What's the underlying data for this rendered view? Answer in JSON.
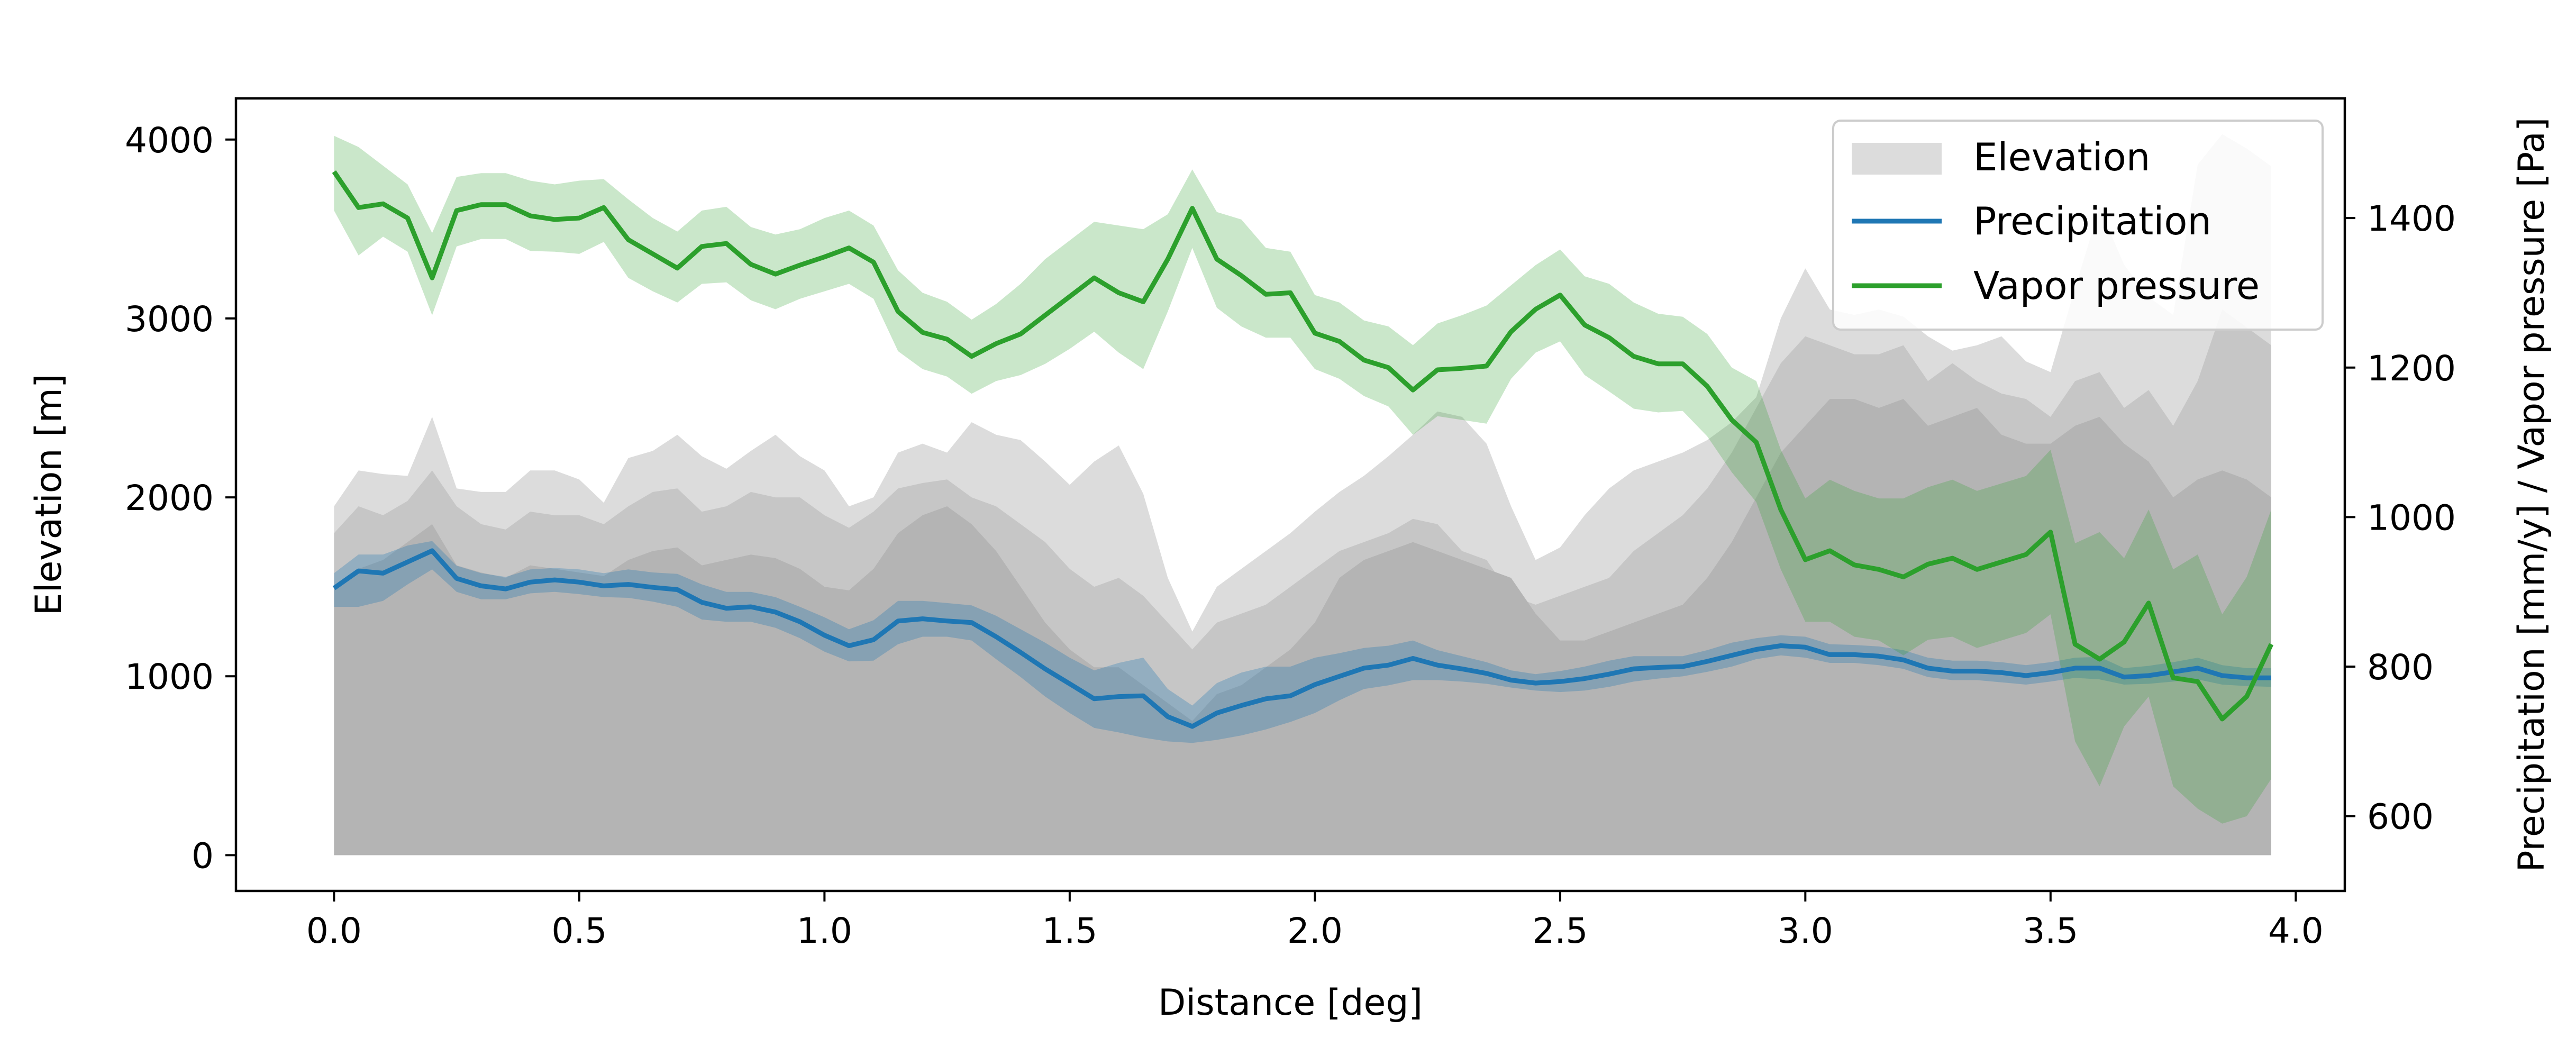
{
  "chart_data": {
    "type": "area",
    "title": "",
    "xlabel": "Distance [deg]",
    "ylabel_left": "Elevation [m]",
    "ylabel_right": "Precipitation [mm/y] / Vapor pressure [Pa]",
    "xlim": [
      -0.2,
      4.1
    ],
    "ylim_left": [
      -200,
      4230
    ],
    "ylim_right": [
      500,
      1560
    ],
    "xticks": [
      0.0,
      0.5,
      1.0,
      1.5,
      2.0,
      2.5,
      3.0,
      3.5,
      4.0
    ],
    "xtick_labels": [
      "0.0",
      "0.5",
      "1.0",
      "1.5",
      "2.0",
      "2.5",
      "3.0",
      "3.5",
      "4.0"
    ],
    "yticks_left": [
      0,
      1000,
      2000,
      3000,
      4000
    ],
    "ytick_labels_left": [
      "0",
      "1000",
      "2000",
      "3000",
      "4000"
    ],
    "yticks_right": [
      600,
      800,
      1000,
      1200,
      1400
    ],
    "ytick_labels_right": [
      "600",
      "800",
      "1000",
      "1200",
      "1400"
    ],
    "grid": false,
    "legend_position": "top-right",
    "colors": {
      "elevation_light": "#dcdcdc",
      "elevation_mid": "#c6c6c6",
      "elevation_dark": "#b4b4b4",
      "precipitation": "#1f77b4",
      "vapor": "#2ca02c"
    },
    "legend": [
      "Elevation",
      "Precipitation",
      "Vapor pressure"
    ],
    "x": [
      0.0,
      0.05,
      0.1,
      0.15,
      0.2,
      0.25,
      0.3,
      0.35,
      0.4,
      0.45,
      0.5,
      0.55,
      0.6,
      0.65,
      0.7,
      0.75,
      0.8,
      0.85,
      0.9,
      0.95,
      1.0,
      1.05,
      1.1,
      1.15,
      1.2,
      1.25,
      1.3,
      1.35,
      1.4,
      1.45,
      1.5,
      1.55,
      1.6,
      1.65,
      1.7,
      1.75,
      1.8,
      1.85,
      1.9,
      1.95,
      2.0,
      2.05,
      2.1,
      2.15,
      2.2,
      2.25,
      2.3,
      2.35,
      2.4,
      2.45,
      2.5,
      2.55,
      2.6,
      2.65,
      2.7,
      2.75,
      2.8,
      2.85,
      2.9,
      2.95,
      3.0,
      3.05,
      3.1,
      3.15,
      3.2,
      3.25,
      3.3,
      3.35,
      3.4,
      3.45,
      3.5,
      3.55,
      3.6,
      3.65,
      3.7,
      3.75,
      3.8,
      3.85,
      3.9,
      3.95
    ],
    "series": [
      {
        "name": "Elevation",
        "band_outer_upper": [
          1950,
          2150,
          2130,
          2120,
          2450,
          2050,
          2030,
          2030,
          2150,
          2150,
          2100,
          1970,
          2220,
          2260,
          2350,
          2230,
          2160,
          2260,
          2350,
          2230,
          2150,
          1950,
          2000,
          2250,
          2300,
          2250,
          2420,
          2350,
          2320,
          2200,
          2070,
          2200,
          2290,
          2020,
          1550,
          1250,
          1500,
          1600,
          1700,
          1800,
          1920,
          2030,
          2120,
          2230,
          2350,
          2480,
          2450,
          2300,
          1950,
          1650,
          1720,
          1900,
          2050,
          2150,
          2200,
          2250,
          2320,
          2420,
          2560,
          3000,
          3280,
          3050,
          3020,
          3050,
          3010,
          2900,
          2820,
          2850,
          2900,
          2760,
          2700,
          3170,
          3620,
          3300,
          3120,
          3020,
          3860,
          4030,
          3950,
          3850
        ],
        "band_inner_upper": [
          1800,
          1950,
          1900,
          1980,
          2150,
          1950,
          1850,
          1820,
          1920,
          1900,
          1900,
          1850,
          1950,
          2030,
          2050,
          1920,
          1950,
          2030,
          2000,
          2000,
          1900,
          1830,
          1920,
          2050,
          2080,
          2100,
          2000,
          1950,
          1850,
          1750,
          1600,
          1500,
          1550,
          1450,
          1300,
          1150,
          1300,
          1350,
          1400,
          1500,
          1600,
          1700,
          1750,
          1800,
          1880,
          1850,
          1700,
          1650,
          1450,
          1400,
          1450,
          1500,
          1550,
          1700,
          1800,
          1900,
          2050,
          2250,
          2500,
          2750,
          2900,
          2850,
          2800,
          2800,
          2850,
          2650,
          2750,
          2650,
          2580,
          2550,
          2450,
          2650,
          2700,
          2500,
          2600,
          2400,
          2650,
          3050,
          2950,
          2850
        ],
        "band_dark_upper": [
          1500,
          1600,
          1650,
          1750,
          1850,
          1620,
          1580,
          1550,
          1620,
          1600,
          1580,
          1560,
          1650,
          1700,
          1720,
          1620,
          1650,
          1680,
          1660,
          1600,
          1500,
          1480,
          1600,
          1800,
          1900,
          1950,
          1850,
          1700,
          1500,
          1300,
          1150,
          1050,
          1050,
          950,
          850,
          750,
          900,
          950,
          1050,
          1150,
          1300,
          1550,
          1650,
          1700,
          1750,
          1700,
          1650,
          1600,
          1550,
          1350,
          1200,
          1200,
          1250,
          1300,
          1350,
          1400,
          1550,
          1750,
          2000,
          2250,
          2400,
          2550,
          2550,
          2500,
          2550,
          2400,
          2450,
          2500,
          2350,
          2300,
          2300,
          2400,
          2450,
          2300,
          2200,
          2000,
          2100,
          2150,
          2100,
          2000
        ]
      },
      {
        "name": "Precipitation",
        "values": [
          905,
          928,
          925,
          940,
          955,
          918,
          908,
          904,
          913,
          916,
          913,
          908,
          910,
          906,
          903,
          886,
          878,
          880,
          873,
          860,
          842,
          828,
          836,
          861,
          864,
          861,
          859,
          840,
          819,
          797,
          777,
          757,
          760,
          761,
          733,
          720,
          738,
          748,
          757,
          761,
          776,
          787,
          798,
          802,
          811,
          802,
          797,
          791,
          782,
          778,
          780,
          784,
          790,
          797,
          799,
          800,
          807,
          815,
          823,
          828,
          826,
          816,
          816,
          814,
          809,
          798,
          794,
          794,
          792,
          788,
          792,
          798,
          798,
          786,
          788,
          793,
          798,
          788,
          785,
          785
        ],
        "band_low": [
          880,
          880,
          888,
          910,
          930,
          900,
          890,
          890,
          898,
          900,
          897,
          893,
          892,
          887,
          880,
          863,
          860,
          860,
          852,
          838,
          820,
          807,
          808,
          830,
          840,
          840,
          835,
          810,
          786,
          760,
          738,
          718,
          712,
          705,
          700,
          698,
          702,
          708,
          716,
          726,
          738,
          755,
          770,
          775,
          782,
          782,
          780,
          777,
          772,
          768,
          766,
          768,
          773,
          780,
          784,
          787,
          793,
          800,
          810,
          815,
          812,
          805,
          805,
          802,
          797,
          786,
          782,
          782,
          779,
          776,
          780,
          785,
          783,
          776,
          777,
          780,
          783,
          776,
          774,
          773
        ],
        "band_high": [
          925,
          950,
          950,
          962,
          968,
          935,
          925,
          920,
          930,
          932,
          930,
          925,
          930,
          926,
          924,
          910,
          900,
          900,
          893,
          880,
          866,
          850,
          862,
          888,
          888,
          885,
          882,
          868,
          850,
          832,
          812,
          795,
          805,
          812,
          770,
          748,
          778,
          792,
          800,
          800,
          812,
          818,
          825,
          828,
          835,
          822,
          814,
          806,
          795,
          790,
          794,
          800,
          808,
          814,
          814,
          814,
          822,
          832,
          838,
          842,
          840,
          830,
          829,
          827,
          822,
          812,
          808,
          808,
          806,
          802,
          806,
          812,
          813,
          798,
          801,
          806,
          812,
          802,
          798,
          798
        ]
      },
      {
        "name": "Vapor pressure",
        "values": [
          1462,
          1414,
          1419,
          1400,
          1320,
          1410,
          1418,
          1418,
          1403,
          1398,
          1400,
          1414,
          1371,
          1352,
          1333,
          1362,
          1366,
          1338,
          1325,
          1337,
          1348,
          1360,
          1341,
          1275,
          1247,
          1238,
          1215,
          1232,
          1245,
          1270,
          1295,
          1320,
          1300,
          1288,
          1345,
          1413,
          1345,
          1323,
          1298,
          1300,
          1246,
          1235,
          1210,
          1200,
          1170,
          1197,
          1199,
          1202,
          1248,
          1278,
          1297,
          1257,
          1240,
          1215,
          1205,
          1205,
          1175,
          1130,
          1100,
          1010,
          943,
          955,
          936,
          930,
          920,
          937,
          945,
          930,
          940,
          950,
          980,
          830,
          810,
          833,
          885,
          785,
          780,
          730,
          760,
          830
        ],
        "band_low": [
          1410,
          1350,
          1375,
          1355,
          1270,
          1362,
          1372,
          1372,
          1356,
          1355,
          1352,
          1368,
          1320,
          1302,
          1287,
          1312,
          1314,
          1290,
          1278,
          1292,
          1302,
          1312,
          1292,
          1222,
          1198,
          1188,
          1165,
          1182,
          1190,
          1205,
          1225,
          1248,
          1220,
          1198,
          1275,
          1360,
          1280,
          1255,
          1240,
          1240,
          1198,
          1185,
          1162,
          1148,
          1110,
          1135,
          1130,
          1125,
          1185,
          1220,
          1235,
          1190,
          1168,
          1145,
          1140,
          1142,
          1108,
          1060,
          1020,
          930,
          860,
          860,
          840,
          835,
          815,
          836,
          840,
          825,
          835,
          845,
          870,
          700,
          640,
          720,
          760,
          640,
          610,
          590,
          600,
          650
        ],
        "band_high": [
          1510,
          1495,
          1470,
          1445,
          1380,
          1455,
          1460,
          1460,
          1450,
          1445,
          1450,
          1452,
          1425,
          1400,
          1382,
          1410,
          1415,
          1388,
          1378,
          1385,
          1400,
          1410,
          1390,
          1330,
          1300,
          1288,
          1264,
          1285,
          1312,
          1345,
          1370,
          1395,
          1390,
          1385,
          1405,
          1465,
          1408,
          1398,
          1360,
          1355,
          1297,
          1287,
          1263,
          1255,
          1230,
          1259,
          1270,
          1283,
          1310,
          1337,
          1358,
          1322,
          1312,
          1287,
          1272,
          1268,
          1245,
          1200,
          1182,
          1090,
          1025,
          1050,
          1035,
          1025,
          1025,
          1040,
          1050,
          1035,
          1045,
          1055,
          1090,
          965,
          980,
          945,
          1010,
          930,
          950,
          870,
          920,
          1010
        ]
      }
    ]
  }
}
